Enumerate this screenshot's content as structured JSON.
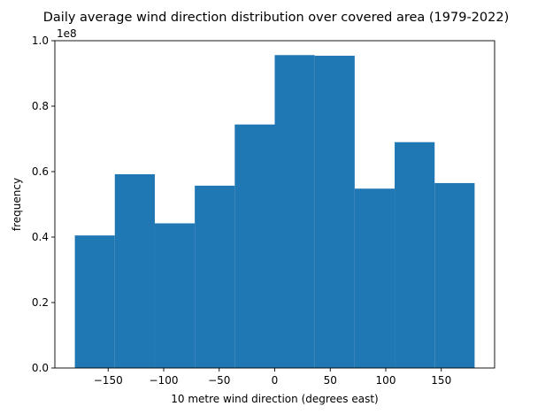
{
  "chart_data": {
    "type": "bar",
    "title": "Daily average wind direction distribution over covered area (1979-2022)",
    "xlabel": "10 metre wind direction (degrees east)",
    "ylabel": "frequency",
    "y_offset_text": "1e8",
    "bin_edges": [
      -180,
      -144,
      -108,
      -72,
      -36,
      0,
      36,
      72,
      108,
      144,
      180
    ],
    "values": [
      0.405,
      0.592,
      0.442,
      0.557,
      0.744,
      0.956,
      0.954,
      0.548,
      0.69,
      0.565
    ],
    "value_scale": 100000000,
    "xlim": [
      -198,
      198
    ],
    "ylim": [
      0,
      1.0
    ],
    "xticks": [
      -150,
      -100,
      -50,
      0,
      50,
      100,
      150
    ],
    "xtick_labels": [
      "−150",
      "−100",
      "−50",
      "0",
      "50",
      "100",
      "150"
    ],
    "yticks": [
      0.0,
      0.2,
      0.4,
      0.6,
      0.8,
      1.0
    ],
    "ytick_labels": [
      "0.0",
      "0.2",
      "0.4",
      "0.6",
      "0.8",
      "1.0"
    ],
    "grid": false,
    "bar_color": "#1f77b4"
  }
}
